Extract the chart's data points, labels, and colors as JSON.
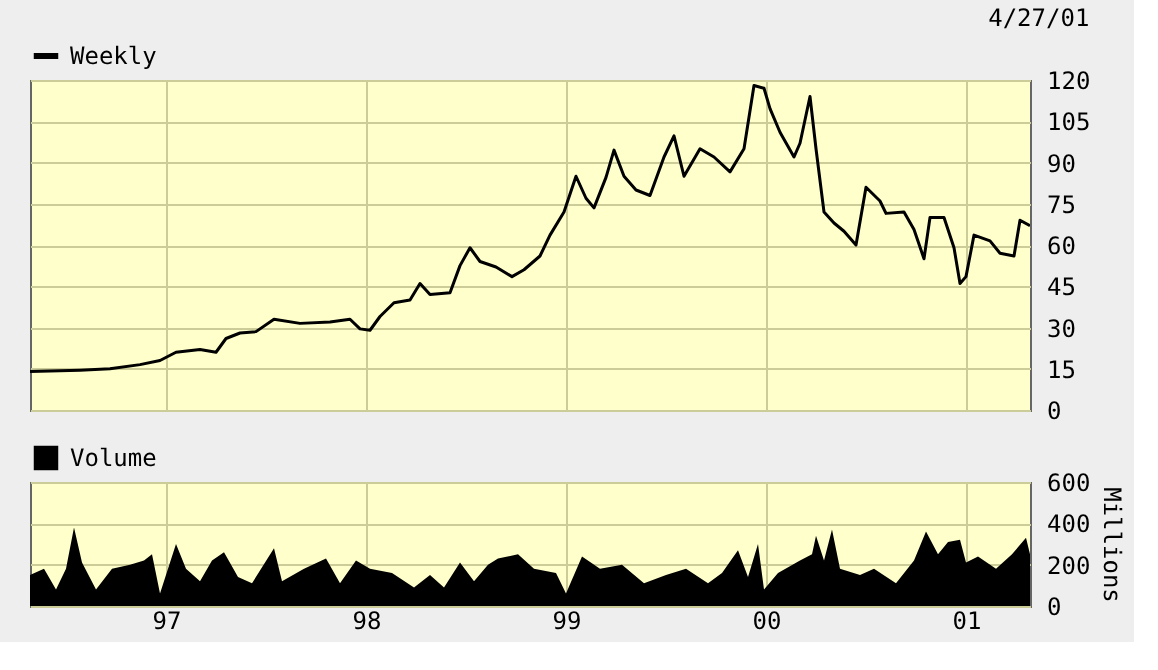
{
  "chart_data": [
    {
      "type": "line",
      "annotations": [
        "4/27/01"
      ],
      "legend": "top left",
      "grid": true,
      "tick_labels": "y",
      "xlim": [
        1996.32,
        2001.32
      ],
      "xticks": [
        1997,
        1998,
        1999,
        2000,
        2001
      ],
      "ylim": [
        0,
        120
      ],
      "yticks": [
        0,
        15,
        30,
        45,
        60,
        75,
        90,
        105,
        120
      ],
      "series": [
        {
          "name": "Weekly",
          "color": "#000000",
          "x": [
            1996.32,
            1996.57,
            1996.72,
            1996.87,
            1996.97,
            1997.05,
            1997.17,
            1997.25,
            1997.3,
            1997.37,
            1997.45,
            1997.54,
            1997.67,
            1997.82,
            1997.92,
            1997.97,
            1998.02,
            1998.07,
            1998.14,
            1998.22,
            1998.27,
            1998.32,
            1998.42,
            1998.47,
            1998.52,
            1998.57,
            1998.65,
            1998.73,
            1998.79,
            1998.87,
            1998.92,
            1998.99,
            1999.05,
            1999.1,
            1999.14,
            1999.2,
            1999.24,
            1999.29,
            1999.35,
            1999.42,
            1999.49,
            1999.54,
            1999.59,
            1999.67,
            1999.74,
            1999.82,
            1999.89,
            1999.94,
            1999.99,
            2000.02,
            2000.07,
            2000.14,
            2000.17,
            2000.22,
            2000.25,
            2000.29,
            2000.34,
            2000.39,
            2000.45,
            2000.5,
            2000.57,
            2000.6,
            2000.69,
            2000.74,
            2000.79,
            2000.82,
            2000.89,
            2000.94,
            2000.97,
            2001.0,
            2001.04,
            2001.12,
            2001.17,
            2001.24,
            2001.27,
            2001.32
          ],
          "values": [
            14,
            14.5,
            15,
            16.5,
            18,
            21,
            22,
            21,
            26,
            28,
            28.5,
            33,
            31.5,
            32,
            33,
            29.5,
            29,
            34,
            39,
            40,
            46,
            42,
            42.6,
            52.5,
            59,
            54,
            52,
            48.5,
            51,
            56,
            63.6,
            72,
            85,
            77,
            73.5,
            84.6,
            94.5,
            85,
            80,
            78,
            92,
            99.7,
            85,
            95,
            92,
            86.6,
            95,
            118,
            117,
            109.6,
            101,
            92,
            97,
            114,
            95,
            72,
            68,
            65,
            60,
            81,
            76,
            71.5,
            72,
            65.6,
            55,
            70,
            70,
            59,
            46,
            48.5,
            63.6,
            61.5,
            57,
            56,
            69,
            67
          ]
        }
      ]
    },
    {
      "type": "area",
      "ylabel": "Millions",
      "legend": "top left",
      "grid": true,
      "xlim": [
        1996.32,
        2001.32
      ],
      "xticks": [
        {
          "value": 1997,
          "label": "97"
        },
        {
          "value": 1998,
          "label": "98"
        },
        {
          "value": 1999,
          "label": "99"
        },
        {
          "value": 2000,
          "label": "00"
        },
        {
          "value": 2001,
          "label": "01"
        }
      ],
      "ylim": [
        0,
        600
      ],
      "yticks": [
        0,
        200,
        400,
        600
      ],
      "series": [
        {
          "name": "Volume",
          "color": "#000000",
          "x": [
            1996.32,
            1996.39,
            1996.45,
            1996.5,
            1996.54,
            1996.58,
            1996.65,
            1996.73,
            1996.82,
            1996.89,
            1996.93,
            1996.97,
            1997.05,
            1997.1,
            1997.17,
            1997.23,
            1997.29,
            1997.36,
            1997.43,
            1997.54,
            1997.58,
            1997.69,
            1997.8,
            1997.87,
            1997.95,
            1998.02,
            1998.13,
            1998.24,
            1998.32,
            1998.39,
            1998.47,
            1998.54,
            1998.61,
            1998.66,
            1998.76,
            1998.84,
            1998.95,
            1999.0,
            1999.08,
            1999.17,
            1999.28,
            1999.39,
            1999.5,
            1999.6,
            1999.71,
            1999.78,
            1999.86,
            1999.91,
            1999.96,
            1999.99,
            2000.06,
            2000.17,
            2000.23,
            2000.25,
            2000.29,
            2000.33,
            2000.37,
            2000.47,
            2000.54,
            2000.65,
            2000.74,
            2000.8,
            2000.86,
            2000.91,
            2000.97,
            2001.0,
            2001.06,
            2001.15,
            2001.23,
            2001.3,
            2001.32
          ],
          "values": [
            150,
            180,
            80,
            180,
            380,
            210,
            80,
            180,
            200,
            220,
            250,
            60,
            300,
            180,
            120,
            220,
            260,
            140,
            110,
            280,
            120,
            180,
            230,
            110,
            220,
            180,
            160,
            90,
            150,
            90,
            210,
            120,
            200,
            230,
            250,
            180,
            160,
            60,
            240,
            180,
            200,
            110,
            150,
            180,
            110,
            160,
            270,
            140,
            300,
            80,
            160,
            220,
            250,
            340,
            220,
            370,
            180,
            150,
            180,
            110,
            220,
            360,
            250,
            310,
            320,
            210,
            240,
            180,
            250,
            330,
            250
          ]
        }
      ]
    }
  ]
}
